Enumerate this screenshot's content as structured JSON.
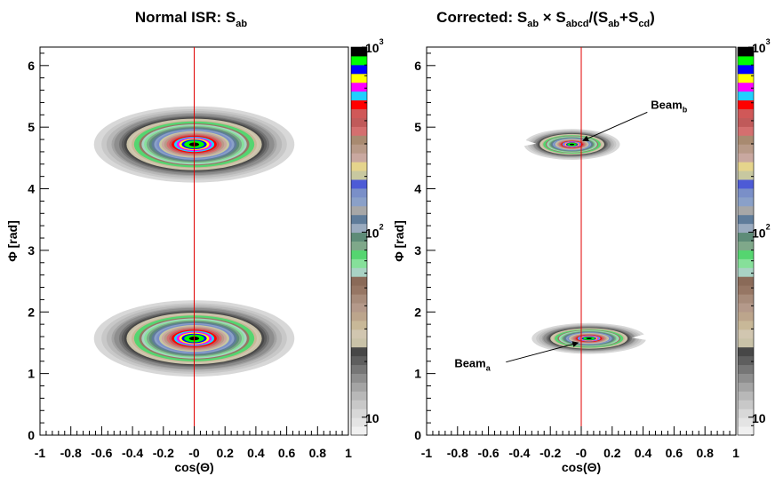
{
  "chart_data": [
    {
      "type": "heatmap",
      "title_main": "Normal ISR:  S",
      "title_sub": "ab",
      "xlabel": "cos(Θ)",
      "ylabel": "Φ [rad]",
      "xlim": [
        -1,
        1
      ],
      "ylim": [
        0,
        6.3
      ],
      "x_ticks": [
        "-1",
        "-0.8",
        "-0.6",
        "-0.4",
        "-0.2",
        "-0",
        "0.2",
        "0.4",
        "0.6",
        "0.8",
        "1"
      ],
      "y_ticks": [
        "0",
        "1",
        "2",
        "3",
        "4",
        "5",
        "6"
      ],
      "reference_line_x": 0,
      "colorbar": {
        "scale": "log",
        "min": 8,
        "max": 1000,
        "tick_labels": [
          {
            "base": "10",
            "exp": "3"
          },
          {
            "base": "10",
            "exp": "2"
          },
          {
            "base": "10",
            "exp": ""
          }
        ]
      },
      "blobs": [
        {
          "cx": 0,
          "cy": 4.72,
          "rx": 0.65,
          "ry": 0.62,
          "peak": 1000,
          "cut": false
        },
        {
          "cx": 0,
          "cy": 1.57,
          "rx": 0.65,
          "ry": 0.62,
          "peak": 1000,
          "cut": false
        }
      ],
      "annotations": []
    },
    {
      "type": "heatmap",
      "title_main": "Corrected:  S",
      "title_sub": "ab",
      "title_rest": [
        {
          "t": " × S",
          "sub": "abcd"
        },
        {
          "t": "/(S",
          "sub": "ab"
        },
        {
          "t": "+S",
          "sub": "cd"
        },
        {
          "t": ")",
          "sub": ""
        }
      ],
      "xlabel": "cos(Θ)",
      "ylabel": "Φ [rad]",
      "xlim": [
        -1,
        1
      ],
      "ylim": [
        0,
        6.3
      ],
      "x_ticks": [
        "-1",
        "-0.8",
        "-0.6",
        "-0.4",
        "-0.2",
        "-0",
        "0.2",
        "0.4",
        "0.6",
        "0.8",
        "1"
      ],
      "y_ticks": [
        "0",
        "1",
        "2",
        "3",
        "4",
        "5",
        "6"
      ],
      "reference_line_x": 0,
      "colorbar": {
        "scale": "log",
        "min": 8,
        "max": 1000,
        "tick_labels": [
          {
            "base": "10",
            "exp": "3"
          },
          {
            "base": "10",
            "exp": "2"
          },
          {
            "base": "10",
            "exp": ""
          }
        ]
      },
      "blobs": [
        {
          "cx": -0.06,
          "cy": 4.72,
          "rx": 0.31,
          "ry": 0.25,
          "peak": 1000,
          "cut": true
        },
        {
          "cx": 0.05,
          "cy": 1.57,
          "rx": 0.37,
          "ry": 0.25,
          "peak": 1000,
          "cut": true
        }
      ],
      "annotations": [
        {
          "label": "Beam",
          "sub": "b",
          "text_x": 0.45,
          "text_y": 5.3,
          "arrow_to_x": 0.01,
          "arrow_to_y": 4.78
        },
        {
          "label": "Beam",
          "sub": "a",
          "text_x": -0.82,
          "text_y": 1.1,
          "arrow_to_x": -0.02,
          "arrow_to_y": 1.5
        }
      ]
    }
  ],
  "palette": [
    "#f0f0f0",
    "#e4e4e4",
    "#d8d8d8",
    "#c8c8c8",
    "#b8b8b8",
    "#a4a4a4",
    "#8e8e8e",
    "#767676",
    "#5e5e5e",
    "#474747",
    "#c9c2a8",
    "#d1c6b0",
    "#c8b898",
    "#bca58c",
    "#b4998a",
    "#a78b7a",
    "#967664",
    "#8a6a58",
    "#a9d2c4",
    "#86e09a",
    "#55d570",
    "#7fa88a",
    "#5e8c78",
    "#9aabbf",
    "#5f7c9a",
    "#a7a7a7",
    "#8aa0c8",
    "#7a8fc8",
    "#4d5bd6",
    "#c8c8a0",
    "#e5d48c",
    "#c9a8a0",
    "#b89a88",
    "#a88a70",
    "#d46f6f",
    "#c05a5a",
    "#d05858",
    "#ff0000",
    "#20d0ff",
    "#ff00ff",
    "#ffff00",
    "#0000ff",
    "#00ff00",
    "#000000"
  ]
}
